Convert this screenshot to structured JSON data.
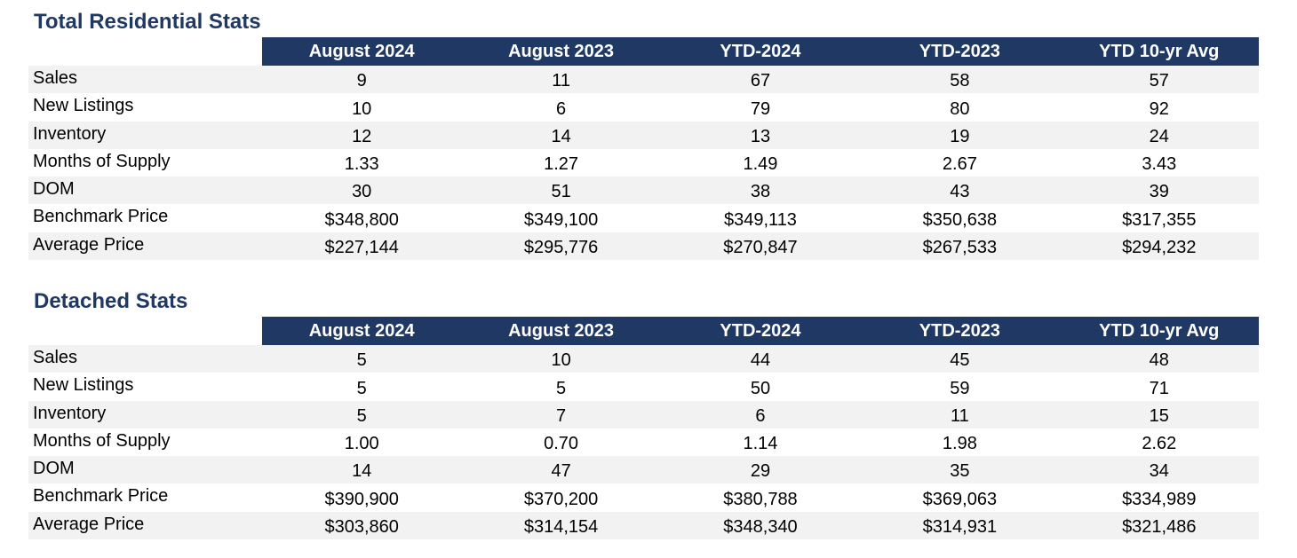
{
  "sections": [
    {
      "title": "Total Residential Stats",
      "columns": [
        "August 2024",
        "August 2023",
        "YTD-2024",
        "YTD-2023",
        "YTD 10-yr Avg"
      ],
      "rows": [
        {
          "label": "Sales",
          "values": [
            "9",
            "11",
            "67",
            "58",
            "57"
          ]
        },
        {
          "label": "New Listings",
          "values": [
            "10",
            "6",
            "79",
            "80",
            "92"
          ]
        },
        {
          "label": "Inventory",
          "values": [
            "12",
            "14",
            "13",
            "19",
            "24"
          ]
        },
        {
          "label": "Months of Supply",
          "values": [
            "1.33",
            "1.27",
            "1.49",
            "2.67",
            "3.43"
          ]
        },
        {
          "label": "DOM",
          "values": [
            "30",
            "51",
            "38",
            "43",
            "39"
          ]
        },
        {
          "label": "Benchmark Price",
          "values": [
            "$348,800",
            "$349,100",
            "$349,113",
            "$350,638",
            "$317,355"
          ]
        },
        {
          "label": "Average Price",
          "values": [
            "$227,144",
            "$295,776",
            "$270,847",
            "$267,533",
            "$294,232"
          ]
        }
      ]
    },
    {
      "title": "Detached Stats",
      "columns": [
        "August 2024",
        "August 2023",
        "YTD-2024",
        "YTD-2023",
        "YTD 10-yr Avg"
      ],
      "rows": [
        {
          "label": "Sales",
          "values": [
            "5",
            "10",
            "44",
            "45",
            "48"
          ]
        },
        {
          "label": "New Listings",
          "values": [
            "5",
            "5",
            "50",
            "59",
            "71"
          ]
        },
        {
          "label": "Inventory",
          "values": [
            "5",
            "7",
            "6",
            "11",
            "15"
          ]
        },
        {
          "label": "Months of Supply",
          "values": [
            "1.00",
            "0.70",
            "1.14",
            "1.98",
            "2.62"
          ]
        },
        {
          "label": "DOM",
          "values": [
            "14",
            "47",
            "29",
            "35",
            "34"
          ]
        },
        {
          "label": "Benchmark Price",
          "values": [
            "$390,900",
            "$370,200",
            "$380,788",
            "$369,063",
            "$334,989"
          ]
        },
        {
          "label": "Average Price",
          "values": [
            "$303,860",
            "$314,154",
            "$348,340",
            "$314,931",
            "$321,486"
          ]
        }
      ]
    }
  ],
  "colors": {
    "title_text": "#1f3864",
    "header_fill": "#1f3864",
    "header_text": "#ffffff",
    "stripe_fill": "#f2f2f2"
  }
}
